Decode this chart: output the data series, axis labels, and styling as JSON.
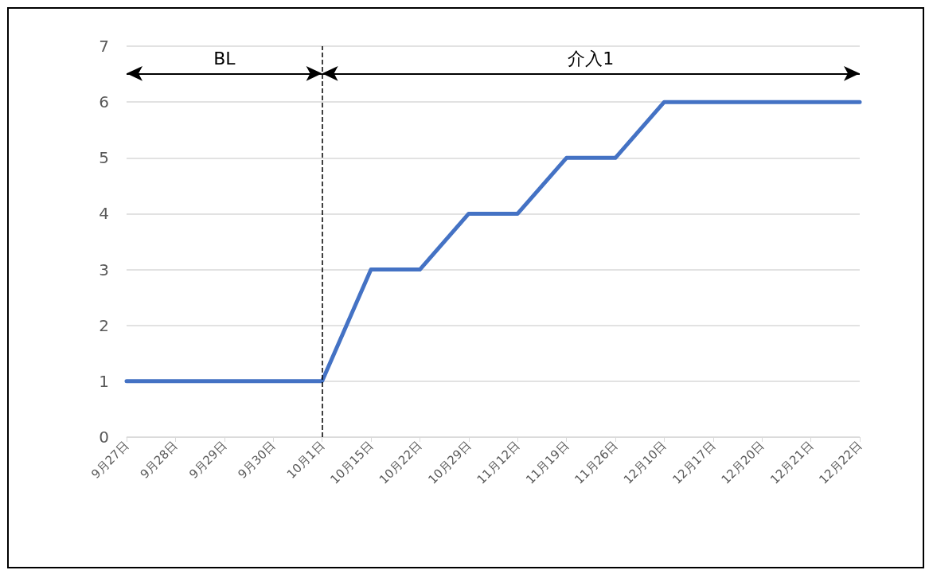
{
  "chart_data": {
    "type": "line",
    "categories": [
      "9月27日",
      "9月28日",
      "9月29日",
      "9月30日",
      "10月1日",
      "10月15日",
      "10月22日",
      "10月29日",
      "11月12日",
      "11月19日",
      "11月26日",
      "12月10日",
      "12月17日",
      "12月20日",
      "12月21日",
      "12月22日"
    ],
    "series": [
      {
        "color": "#4472c4",
        "values": [
          1,
          1,
          1,
          1,
          1,
          3,
          3,
          4,
          4,
          5,
          5,
          6,
          6,
          6,
          6,
          6
        ]
      }
    ],
    "ylim": [
      0,
      7
    ],
    "yticks": [
      0,
      1,
      2,
      3,
      4,
      5,
      6,
      7
    ],
    "grid": "y",
    "marker": "none",
    "line_style": "solid",
    "ref_lines": [
      {
        "axis": "x",
        "value": "10月1日",
        "color": "#000000",
        "line_style": "dashed"
      }
    ],
    "annotations": [
      "BL",
      "介入1"
    ]
  }
}
